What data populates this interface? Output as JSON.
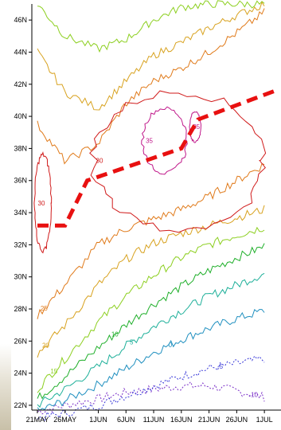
{
  "chart_data": {
    "type": "contour",
    "title": "",
    "xlabel": "",
    "ylabel": "",
    "x_ticks": [
      "21MAY",
      "26MAY",
      "1JUN",
      "6JUN",
      "11JUN",
      "16JUN",
      "21JUN",
      "26JUN",
      "1JUL"
    ],
    "y_ticks": [
      "22N",
      "24N",
      "26N",
      "28N",
      "30N",
      "32N",
      "34N",
      "36N",
      "38N",
      "40N",
      "42N",
      "44N",
      "46N"
    ],
    "ylim": [
      22,
      47
    ],
    "x_days_since_21MAY": [
      0,
      5,
      11,
      16,
      21,
      26,
      31,
      36,
      41
    ],
    "contour_levels": [
      {
        "level": "-10",
        "color": "#7b30c8",
        "dashed": true,
        "lat": [
          21.6,
          22.0,
          22.4,
          22.8,
          23.0,
          23.2,
          23.2,
          22.9,
          22.5
        ]
      },
      {
        "level": "-5",
        "color": "#3838d8",
        "dashed": true,
        "lat": [
          21.2,
          21.5,
          22.0,
          22.6,
          23.2,
          23.8,
          24.3,
          24.6,
          24.9
        ]
      },
      {
        "level": "0",
        "color": "#1e8fbf",
        "dashed": false,
        "lat": [
          21.6,
          22.3,
          23.3,
          24.3,
          25.3,
          26.1,
          26.8,
          27.4,
          27.9
        ]
      },
      {
        "level": "5",
        "color": "#1fb09a",
        "dashed": false,
        "lat": [
          22.0,
          23.0,
          24.4,
          25.7,
          26.9,
          27.9,
          28.8,
          29.5,
          30.2
        ]
      },
      {
        "level": "10",
        "color": "#1faf2a",
        "dashed": false,
        "lat": [
          22.4,
          23.8,
          25.6,
          27.0,
          28.3,
          29.4,
          30.4,
          31.2,
          31.9
        ]
      },
      {
        "level": "15",
        "color": "#8ccf1f",
        "dashed": false,
        "lat": [
          23.0,
          24.9,
          27.2,
          28.8,
          30.1,
          31.2,
          32.0,
          32.6,
          33.1
        ]
      },
      {
        "level": "20",
        "color": "#d8a21f",
        "dashed": false,
        "lat": [
          25.2,
          27.0,
          29.5,
          31.1,
          32.1,
          32.7,
          33.2,
          33.7,
          34.2
        ]
      },
      {
        "level": "25",
        "color": "#e07a1a",
        "dashed": false,
        "lat": [
          27.6,
          29.5,
          32.0,
          33.0,
          33.6,
          34.2,
          35.0,
          36.0,
          37.0
        ]
      }
    ],
    "upper_contours": [
      {
        "level": "15",
        "color": "#8ccf1f",
        "dashed": false,
        "lat": [
          47.0,
          45.0,
          44.2,
          44.8,
          46.0,
          46.8,
          47.0,
          47.0,
          47.0
        ]
      },
      {
        "level": "20",
        "color": "#d8a21f",
        "dashed": false,
        "lat": [
          44.0,
          41.5,
          40.5,
          42.2,
          43.8,
          44.6,
          45.5,
          46.3,
          47.0
        ]
      },
      {
        "level": "25",
        "color": "#e07a1a",
        "dashed": false,
        "lat": [
          39.5,
          37.2,
          38.3,
          40.8,
          42.2,
          43.0,
          44.0,
          45.2,
          46.5
        ]
      }
    ],
    "closed_contours": [
      {
        "level": "30",
        "color": "#d01a1a",
        "region": "west",
        "lat_range": [
          31.6,
          37.6
        ],
        "day_range": [
          -0.5,
          2.5
        ]
      },
      {
        "level": "30",
        "color": "#d01a1a",
        "region": "central",
        "lat_range": [
          33.0,
          41.5
        ],
        "day_range": [
          10,
          41
        ]
      },
      {
        "level": "35",
        "color": "#c0188a",
        "region": "core",
        "lat_range": [
          36.5,
          40.5
        ],
        "day_range": [
          19,
          27
        ]
      },
      {
        "level": "35",
        "color": "#c0188a",
        "region": "small",
        "lat_range": [
          38.4,
          40.3
        ],
        "day_range": [
          27.5,
          29.5
        ]
      }
    ],
    "contour_labels_shown": [
      "-10",
      "-5",
      "0",
      "5",
      "10",
      "15",
      "20",
      "25",
      "30",
      "35"
    ],
    "rain_belt_axis": {
      "color": "#e81010",
      "style": "dashed",
      "points": [
        {
          "x": "21MAY",
          "lat": 33.2
        },
        {
          "x": "26MAY",
          "lat": 33.2
        },
        {
          "x": "30MAY",
          "lat": 36.0
        },
        {
          "x": "16JUN",
          "lat": 38.0
        },
        {
          "x": "19JUN",
          "lat": 39.8
        },
        {
          "x": "3JUL",
          "lat": 41.6
        }
      ]
    },
    "grid": false,
    "legend": "none"
  }
}
